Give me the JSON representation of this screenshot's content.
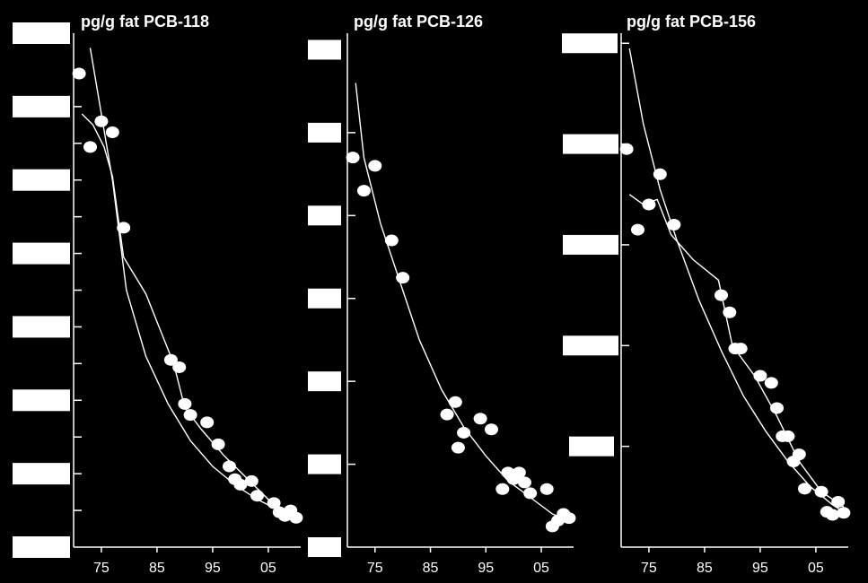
{
  "chart_data": [
    {
      "type": "scatter",
      "title": "pg/g fat PCB-118",
      "x_ticks": [
        "75",
        "85",
        "95",
        "05"
      ],
      "xlim": [
        1970.5,
        2010.5
      ],
      "ylim": [
        0,
        14
      ],
      "y_tick_values": [
        1,
        2,
        3,
        4,
        5,
        6,
        7,
        8,
        9,
        10,
        11,
        12,
        13
      ],
      "y_boxes_at": [
        0,
        2,
        4,
        6,
        8,
        10,
        12,
        14
      ],
      "points": [
        {
          "x": 1971,
          "y": 12.9
        },
        {
          "x": 1973,
          "y": 10.9
        },
        {
          "x": 1975,
          "y": 11.6
        },
        {
          "x": 1977,
          "y": 11.3
        },
        {
          "x": 1979,
          "y": 8.7
        },
        {
          "x": 1987.5,
          "y": 5.1
        },
        {
          "x": 1989,
          "y": 4.9
        },
        {
          "x": 1990,
          "y": 3.9
        },
        {
          "x": 1991,
          "y": 3.6
        },
        {
          "x": 1994,
          "y": 3.4
        },
        {
          "x": 1996,
          "y": 2.8
        },
        {
          "x": 1998,
          "y": 2.2
        },
        {
          "x": 1999,
          "y": 1.85
        },
        {
          "x": 2000,
          "y": 1.7
        },
        {
          "x": 2002,
          "y": 1.8
        },
        {
          "x": 2003,
          "y": 1.4
        },
        {
          "x": 2006,
          "y": 1.2
        },
        {
          "x": 2007,
          "y": 0.95
        },
        {
          "x": 2008,
          "y": 0.85
        },
        {
          "x": 2009,
          "y": 1.0
        },
        {
          "x": 2010,
          "y": 0.8
        }
      ],
      "curves": [
        [
          [
            1973,
            13.6
          ],
          [
            1975,
            11.8
          ],
          [
            1977,
            10.0
          ],
          [
            1979.5,
            7.0
          ],
          [
            1983,
            5.2
          ],
          [
            1987,
            3.9
          ],
          [
            1991,
            2.9
          ],
          [
            1995,
            2.2
          ],
          [
            1999,
            1.7
          ],
          [
            2003,
            1.3
          ],
          [
            2007,
            1.0
          ],
          [
            2010,
            0.8
          ]
        ],
        [
          [
            1971.5,
            11.8
          ],
          [
            1973.5,
            11.5
          ],
          [
            1975.5,
            10.9
          ],
          [
            1977,
            10.1
          ],
          [
            1979,
            7.9
          ],
          [
            1983,
            6.9
          ],
          [
            1988,
            5.0
          ],
          [
            1990,
            3.8
          ],
          [
            1993,
            3.2
          ],
          [
            1997,
            2.5
          ],
          [
            2001,
            1.9
          ],
          [
            2005,
            1.3
          ],
          [
            2009,
            0.9
          ]
        ]
      ]
    },
    {
      "type": "scatter",
      "title": "pg/g fat PCB-126",
      "x_ticks": [
        "75",
        "85",
        "95",
        "05"
      ],
      "xlim": [
        1970.5,
        2010.5
      ],
      "ylim": [
        0,
        6.2
      ],
      "y_tick_values": [
        1,
        2,
        3,
        4,
        5
      ],
      "y_boxes_at": [
        0,
        1,
        2,
        3,
        4,
        5,
        6
      ],
      "points": [
        {
          "x": 1971,
          "y": 4.7
        },
        {
          "x": 1973,
          "y": 4.3
        },
        {
          "x": 1975,
          "y": 4.6
        },
        {
          "x": 1978,
          "y": 3.7
        },
        {
          "x": 1980,
          "y": 3.25
        },
        {
          "x": 1988,
          "y": 1.6
        },
        {
          "x": 1989.5,
          "y": 1.75
        },
        {
          "x": 1990,
          "y": 1.2
        },
        {
          "x": 1991,
          "y": 1.38
        },
        {
          "x": 1994,
          "y": 1.55
        },
        {
          "x": 1996,
          "y": 1.42
        },
        {
          "x": 1998,
          "y": 0.7
        },
        {
          "x": 1999,
          "y": 0.9
        },
        {
          "x": 2000,
          "y": 0.82
        },
        {
          "x": 2001,
          "y": 0.9
        },
        {
          "x": 2002,
          "y": 0.78
        },
        {
          "x": 2003,
          "y": 0.65
        },
        {
          "x": 2006,
          "y": 0.7
        },
        {
          "x": 2007,
          "y": 0.25
        },
        {
          "x": 2008,
          "y": 0.32
        },
        {
          "x": 2009,
          "y": 0.4
        },
        {
          "x": 2010,
          "y": 0.35
        }
      ],
      "curves": [
        [
          [
            1971.5,
            5.6
          ],
          [
            1973,
            4.7
          ],
          [
            1976,
            3.9
          ],
          [
            1979,
            3.3
          ],
          [
            1983,
            2.5
          ],
          [
            1987,
            1.9
          ],
          [
            1991,
            1.45
          ],
          [
            1995,
            1.1
          ],
          [
            1999,
            0.8
          ],
          [
            2003,
            0.6
          ],
          [
            2007,
            0.4
          ],
          [
            2010,
            0.32
          ]
        ]
      ]
    },
    {
      "type": "scatter",
      "title": "pg/g fat PCB-156",
      "x_ticks": [
        "75",
        "85",
        "95",
        "05"
      ],
      "xlim": [
        1970.5,
        2010.5
      ],
      "ylim": [
        0,
        5.1
      ],
      "y_tick_values": [
        1,
        2,
        3,
        4,
        5
      ],
      "y_boxes_at": [
        1,
        2,
        3,
        4,
        5
      ],
      "points": [
        {
          "x": 1971,
          "y": 3.95
        },
        {
          "x": 1973,
          "y": 3.15
        },
        {
          "x": 1975,
          "y": 3.4
        },
        {
          "x": 1977,
          "y": 3.7
        },
        {
          "x": 1979.5,
          "y": 3.2
        },
        {
          "x": 1988,
          "y": 2.5
        },
        {
          "x": 1989.5,
          "y": 2.33
        },
        {
          "x": 1990.5,
          "y": 1.97
        },
        {
          "x": 1991.5,
          "y": 1.97
        },
        {
          "x": 1995,
          "y": 1.7
        },
        {
          "x": 1997,
          "y": 1.63
        },
        {
          "x": 1998,
          "y": 1.38
        },
        {
          "x": 1999,
          "y": 1.1
        },
        {
          "x": 2000,
          "y": 1.1
        },
        {
          "x": 2001,
          "y": 0.85
        },
        {
          "x": 2002,
          "y": 0.92
        },
        {
          "x": 2003,
          "y": 0.58
        },
        {
          "x": 2006,
          "y": 0.55
        },
        {
          "x": 2007,
          "y": 0.35
        },
        {
          "x": 2008,
          "y": 0.32
        },
        {
          "x": 2009,
          "y": 0.45
        },
        {
          "x": 2010,
          "y": 0.34
        }
      ],
      "curves": [
        [
          [
            1971.5,
            4.95
          ],
          [
            1974,
            4.2
          ],
          [
            1977,
            3.55
          ],
          [
            1980,
            3.05
          ],
          [
            1984,
            2.45
          ],
          [
            1988,
            1.95
          ],
          [
            1992,
            1.5
          ],
          [
            1996,
            1.15
          ],
          [
            2000,
            0.85
          ],
          [
            2004,
            0.6
          ],
          [
            2008,
            0.42
          ],
          [
            2010,
            0.35
          ]
        ],
        [
          [
            1971.5,
            3.5
          ],
          [
            1974,
            3.4
          ],
          [
            1976.5,
            3.45
          ],
          [
            1979,
            3.1
          ],
          [
            1983,
            2.85
          ],
          [
            1987.5,
            2.65
          ],
          [
            1990,
            2.0
          ],
          [
            1994,
            1.7
          ],
          [
            1998,
            1.3
          ],
          [
            2002,
            0.85
          ],
          [
            2006,
            0.55
          ],
          [
            2010,
            0.4
          ]
        ]
      ]
    }
  ]
}
